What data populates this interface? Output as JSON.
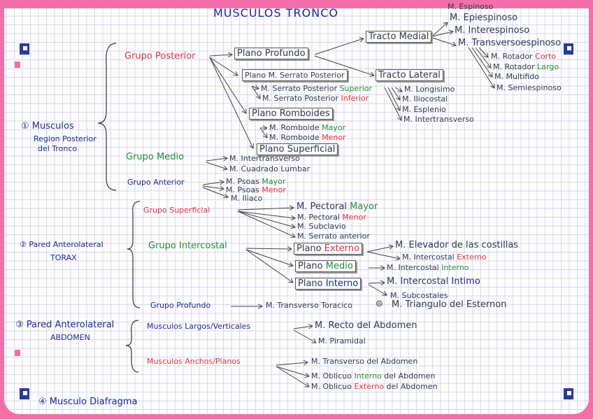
{
  "colors": {
    "blue": "#1f2a8a",
    "red": "#e2323c",
    "green": "#2c8a3a",
    "ink": "#34374f",
    "paper_border": "#f36fa9"
  },
  "title": "MUSCULOS TRONCO",
  "nodes": {
    "espinoso": [
      {
        "t": "M. Espinoso",
        "c": "ink"
      }
    ],
    "epiespinoso": [
      {
        "t": "M. Epiespinoso",
        "c": "ink"
      }
    ],
    "interespinoso": [
      {
        "t": "M. Interespinoso",
        "c": "ink"
      }
    ],
    "transversoespinoso": [
      {
        "t": "M. Transversoespinoso",
        "c": "ink"
      }
    ],
    "tracto_medial": [
      {
        "t": "Tracto Medial",
        "c": "ink"
      }
    ],
    "rotador_corto": [
      {
        "t": "M. Rotador ",
        "c": "ink"
      },
      {
        "t": "Corto",
        "c": "red"
      }
    ],
    "rotador_largo": [
      {
        "t": "M. Rotador ",
        "c": "ink"
      },
      {
        "t": "Largo",
        "c": "green"
      }
    ],
    "multifido": [
      {
        "t": "M. Multifido",
        "c": "ink"
      }
    ],
    "semiespinoso": [
      {
        "t": "M. Semiespinoso",
        "c": "ink"
      }
    ],
    "grupo_posterior": [
      {
        "t": "Grupo Posterior",
        "c": "red"
      }
    ],
    "plano_profundo": [
      {
        "t": "Plano Profundo",
        "c": "ink"
      }
    ],
    "plano_serrato": [
      {
        "t": "Plano M. Serrato Posterior",
        "c": "ink"
      }
    ],
    "tracto_lateral": [
      {
        "t": "Tracto Lateral",
        "c": "ink"
      }
    ],
    "serrato_sup": [
      {
        "t": "M. Serrato Posterior ",
        "c": "ink"
      },
      {
        "t": "Superior",
        "c": "green"
      }
    ],
    "serrato_inf": [
      {
        "t": "M. Serrato Posterior ",
        "c": "ink"
      },
      {
        "t": "Inferior",
        "c": "red"
      }
    ],
    "longisimo": [
      {
        "t": "M. Longisimo",
        "c": "ink"
      }
    ],
    "iliocostal": [
      {
        "t": "M. Iliocostal",
        "c": "ink"
      }
    ],
    "esplenio": [
      {
        "t": "M. Esplenio",
        "c": "ink"
      }
    ],
    "intertransverso_l": [
      {
        "t": "M. Intertransverso",
        "c": "ink"
      }
    ],
    "plano_romboides": [
      {
        "t": "Plano Romboides",
        "c": "ink"
      }
    ],
    "romboide_mayor": [
      {
        "t": "M. Romboide ",
        "c": "ink"
      },
      {
        "t": "Mayor",
        "c": "green"
      }
    ],
    "romboide_menor": [
      {
        "t": "M. Romboide ",
        "c": "ink"
      },
      {
        "t": "Menor",
        "c": "red"
      }
    ],
    "plano_superficial": [
      {
        "t": "Plano Superficial",
        "c": "ink"
      }
    ],
    "sec1": [
      {
        "t": "① Musculos",
        "c": "blue"
      }
    ],
    "sec1b": [
      {
        "t": "Region Posterior",
        "c": "blue"
      }
    ],
    "sec1c": [
      {
        "t": "del Tronco",
        "c": "blue"
      }
    ],
    "grupo_medio": [
      {
        "t": "Grupo Medio",
        "c": "green"
      }
    ],
    "intertransverso_m": [
      {
        "t": "M. Intertransverso",
        "c": "ink"
      }
    ],
    "cuadrado_lumbar": [
      {
        "t": "M. Cuadrado Lumbar",
        "c": "ink"
      }
    ],
    "grupo_anterior": [
      {
        "t": "Grupo Anterior",
        "c": "blue"
      }
    ],
    "psoas_mayor": [
      {
        "t": "M. Psoas ",
        "c": "ink"
      },
      {
        "t": "Mayor",
        "c": "green"
      }
    ],
    "psoas_menor": [
      {
        "t": "M. Psoas ",
        "c": "ink"
      },
      {
        "t": "Menor",
        "c": "red"
      }
    ],
    "iliaco": [
      {
        "t": "M. Iliaco",
        "c": "ink"
      }
    ],
    "grupo_superficial": [
      {
        "t": "Grupo Superficial",
        "c": "red"
      }
    ],
    "pectoral_mayor": [
      {
        "t": "M. Pectoral ",
        "c": "ink"
      },
      {
        "t": "Mayor",
        "c": "green"
      }
    ],
    "pectoral_menor": [
      {
        "t": "M. Pectoral    ",
        "c": "ink"
      },
      {
        "t": "Menor",
        "c": "red"
      }
    ],
    "subclavio": [
      {
        "t": "M. Subclavio",
        "c": "ink"
      }
    ],
    "serrato_anterior": [
      {
        "t": "M. Serrato anterior",
        "c": "ink"
      }
    ],
    "sec2": [
      {
        "t": "② Pared Anterolateral",
        "c": "blue"
      }
    ],
    "sec2b": [
      {
        "t": "TORAX",
        "c": "blue"
      }
    ],
    "grupo_intercostal": [
      {
        "t": "Grupo Intercostal",
        "c": "green"
      }
    ],
    "plano_externo": [
      {
        "t": "Plano ",
        "c": "ink"
      },
      {
        "t": "Externo",
        "c": "red"
      }
    ],
    "elevador": [
      {
        "t": "M. Elevador de las costillas",
        "c": "ink"
      }
    ],
    "intercostal_externo": [
      {
        "t": "M. Intercostal ",
        "c": "ink"
      },
      {
        "t": "Externo",
        "c": "red"
      }
    ],
    "plano_medio": [
      {
        "t": "Plano ",
        "c": "ink"
      },
      {
        "t": "Medio",
        "c": "green"
      }
    ],
    "intercostal_interno": [
      {
        "t": "M. Intercostal ",
        "c": "ink"
      },
      {
        "t": "Interno",
        "c": "green"
      }
    ],
    "plano_interno": [
      {
        "t": "Plano ",
        "c": "ink"
      },
      {
        "t": "Interno",
        "c": "blue"
      }
    ],
    "intercostal_intimo": [
      {
        "t": "M. Intercostal ",
        "c": "ink"
      },
      {
        "t": "Intimo",
        "c": "blue"
      }
    ],
    "subcostales": [
      {
        "t": "M. Subcostales",
        "c": "ink"
      }
    ],
    "grupo_profundo": [
      {
        "t": "Grupo Profundo",
        "c": "blue"
      }
    ],
    "transverso_toracico": [
      {
        "t": "M. Transverso Toracico",
        "c": "ink"
      }
    ],
    "equiv": [
      {
        "t": "⊜",
        "c": "ink"
      }
    ],
    "triangulo": [
      {
        "t": "M. Triangulo del Esternon",
        "c": "ink"
      }
    ],
    "sec3": [
      {
        "t": "③ Pared Anterolateral",
        "c": "blue"
      }
    ],
    "sec3b": [
      {
        "t": "ABDOMEN",
        "c": "blue"
      }
    ],
    "largos": [
      {
        "t": "Musculos Largos/Verticales",
        "c": "blue"
      }
    ],
    "recto": [
      {
        "t": "M. Recto del Abdomen",
        "c": "ink"
      }
    ],
    "piramidal": [
      {
        "t": "M. Piramidal",
        "c": "ink"
      }
    ],
    "anchos": [
      {
        "t": "Musculos Anchos/Planos",
        "c": "red"
      }
    ],
    "transverso_abd": [
      {
        "t": "M. Transverso del Abdomen",
        "c": "ink"
      }
    ],
    "oblicuo_int": [
      {
        "t": "M. Oblicuo ",
        "c": "ink"
      },
      {
        "t": "Interno",
        "c": "green"
      },
      {
        "t": " del Abdomen",
        "c": "ink"
      }
    ],
    "oblicuo_ext": [
      {
        "t": "M. Oblicuo ",
        "c": "ink"
      },
      {
        "t": "Externo",
        "c": "red"
      },
      {
        "t": " del Abdomen",
        "c": "ink"
      }
    ],
    "sec4": [
      {
        "t": "④ Musculo Diafragma",
        "c": "blue"
      }
    ]
  }
}
